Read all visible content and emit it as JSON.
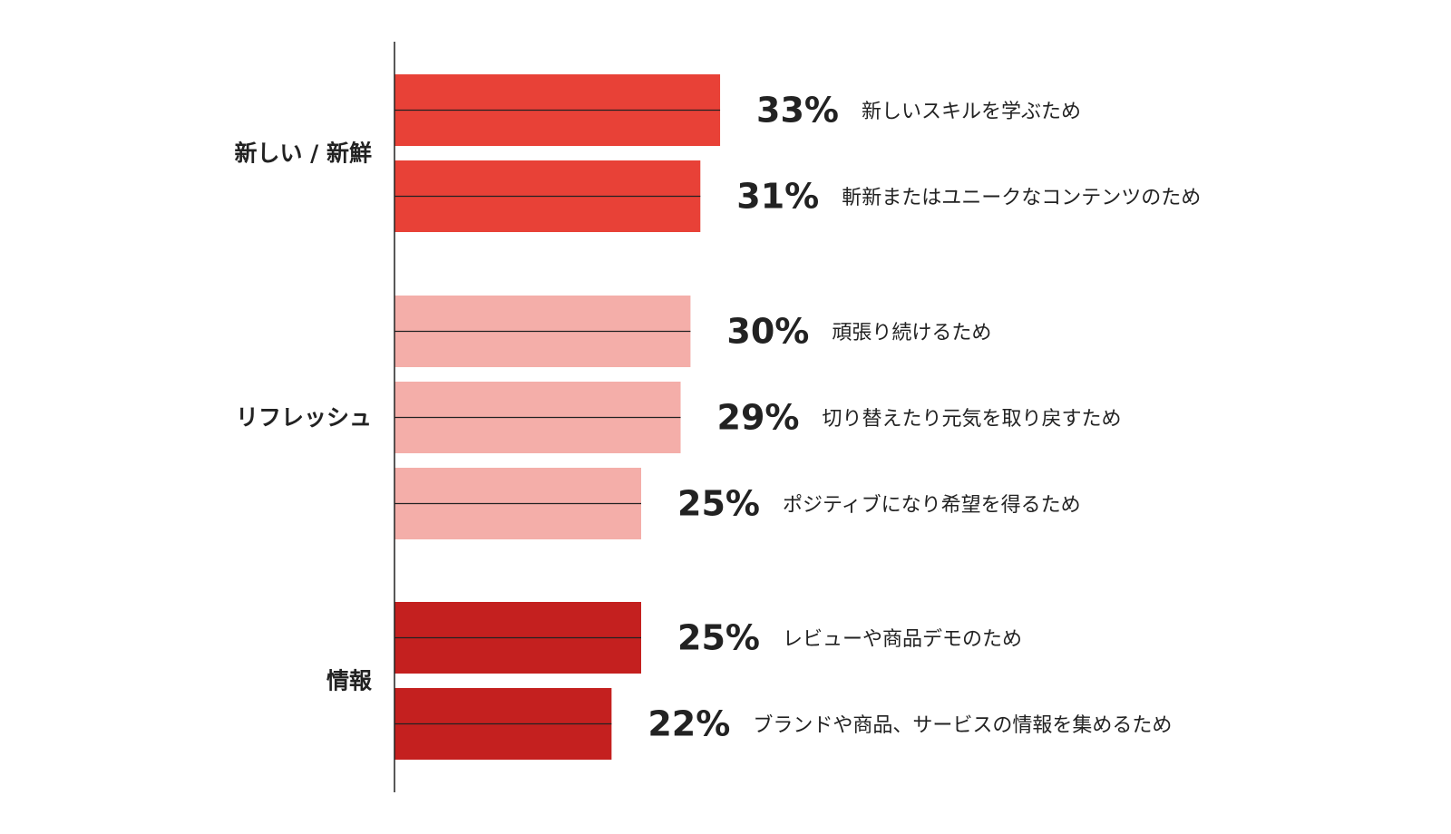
{
  "chart_data": {
    "type": "bar",
    "orientation": "horizontal",
    "value_format": "percent",
    "groups": [
      {
        "label": "新しい / 新鮮",
        "color": "#E84137",
        "items": [
          {
            "value": 33,
            "value_label": "33%",
            "label": "新しいスキルを学ぶため"
          },
          {
            "value": 31,
            "value_label": "31%",
            "label": "斬新またはユニークなコンテンツのため"
          }
        ]
      },
      {
        "label": "リフレッシュ",
        "color": "#F4AEA9",
        "items": [
          {
            "value": 30,
            "value_label": "30%",
            "label": "頑張り続けるため"
          },
          {
            "value": 29,
            "value_label": "29%",
            "label": "切り替えたり元気を取り戻すため"
          },
          {
            "value": 25,
            "value_label": "25%",
            "label": "ポジティブになり希望を得るため"
          }
        ]
      },
      {
        "label": "情報",
        "color": "#C4201F",
        "items": [
          {
            "value": 25,
            "value_label": "25%",
            "label": "レビューや商品デモのため"
          },
          {
            "value": 22,
            "value_label": "22%",
            "label": "ブランドや商品、サービスの情報を集めるため"
          }
        ]
      }
    ],
    "axis_line_color": "#222222"
  }
}
